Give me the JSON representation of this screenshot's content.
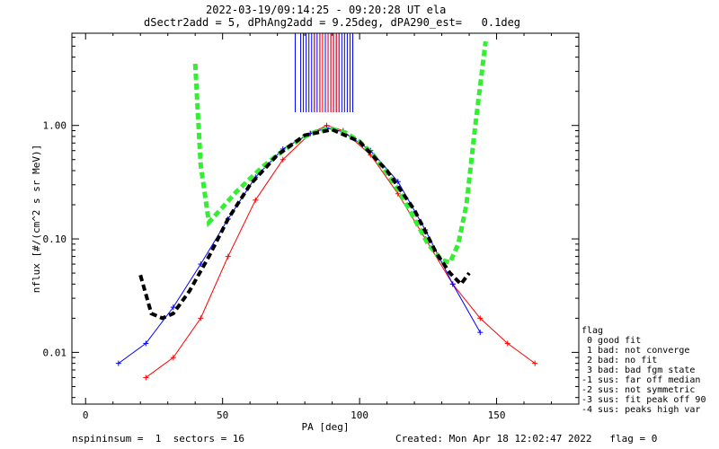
{
  "header": {
    "title_line1": "2022-03-19/09:14:25 - 09:20:28 UT ela",
    "title_line2": "dSectr2add = 5, dPhAng2add = 9.25deg, dPA290_est=   0.1deg"
  },
  "footer": {
    "left": "nspininsum =  1  sectors = 16",
    "right": "Created: Mon Apr 18 12:02:47 2022   flag = 0"
  },
  "legend": {
    "title": "flag",
    "items": [
      " 0 good fit",
      " 1 bad: not converge",
      " 2 bad: no fit",
      " 3 bad: bad fgm state",
      "-1 sus: far off median",
      "-2 sus: not symmetric",
      "-3 sus: fit peak off 90",
      "-4 sus: peaks high var"
    ]
  },
  "colors": {
    "series_red": "#ff0000",
    "series_blue": "#0000ff",
    "fit_green": "#33ee33",
    "fit_black": "#000000",
    "axes": "#000000"
  },
  "chart_data": {
    "type": "line",
    "xlabel": "PA [deg]",
    "ylabel": "nflux [#/(cm^2 s sr MeV)]",
    "xlim": [
      -5,
      180
    ],
    "ylim": [
      0.0035,
      6.5
    ],
    "yscale": "log",
    "x_ticks": [
      0,
      50,
      100,
      150
    ],
    "y_ticks": [
      {
        "value": 0.01,
        "label": "0.01"
      },
      {
        "value": 0.1,
        "label": "0.10"
      },
      {
        "value": 1.0,
        "label": "1.00"
      }
    ],
    "series": [
      {
        "name": "",
        "color": "red",
        "x": [
          22,
          32,
          42,
          52,
          62,
          72,
          82,
          88,
          94,
          104,
          114,
          124,
          134,
          144,
          154,
          164
        ],
        "y": [
          0.006,
          0.009,
          0.02,
          0.07,
          0.22,
          0.5,
          0.85,
          1.0,
          0.9,
          0.55,
          0.25,
          0.1,
          0.04,
          0.02,
          0.012,
          0.008
        ]
      },
      {
        "name": "",
        "color": "blue",
        "x": [
          12,
          22,
          32,
          42,
          52,
          62,
          72,
          82,
          88,
          94,
          104,
          114,
          124,
          134,
          144
        ],
        "y": [
          0.008,
          0.012,
          0.025,
          0.06,
          0.15,
          0.35,
          0.62,
          0.85,
          0.95,
          0.88,
          0.6,
          0.32,
          0.12,
          0.04,
          0.015
        ]
      },
      {
        "name": "",
        "color": "green",
        "style": "dashed-fit",
        "x": [
          40,
          42,
          45,
          50,
          55,
          60,
          65,
          70,
          75,
          80,
          85,
          90,
          95,
          100,
          105,
          110,
          115,
          120,
          125,
          130,
          133,
          136,
          139,
          142,
          146
        ],
        "y": [
          3.5,
          0.45,
          0.14,
          0.19,
          0.26,
          0.34,
          0.44,
          0.55,
          0.67,
          0.8,
          0.9,
          0.93,
          0.86,
          0.72,
          0.55,
          0.38,
          0.25,
          0.15,
          0.09,
          0.065,
          0.062,
          0.09,
          0.2,
          0.9,
          5.5
        ]
      },
      {
        "name": "",
        "color": "black",
        "style": "dashed-fit",
        "x": [
          20,
          24,
          28,
          32,
          38,
          45,
          52,
          60,
          70,
          80,
          90,
          100,
          110,
          120,
          128,
          133,
          137,
          140
        ],
        "y": [
          0.048,
          0.022,
          0.02,
          0.022,
          0.035,
          0.07,
          0.15,
          0.3,
          0.55,
          0.82,
          0.92,
          0.72,
          0.4,
          0.18,
          0.075,
          0.05,
          0.04,
          0.05
        ]
      }
    ],
    "vertical_lines": {
      "red": [
        83.5,
        85.5,
        86.5,
        88.5,
        89.5,
        90.5,
        91.5,
        92.5
      ],
      "blue": [
        76.5,
        78.5,
        79.5,
        80.5,
        81.5,
        82.5,
        83.5,
        84.5,
        85.5,
        86.5,
        87.5,
        88.5,
        89.5,
        90.5,
        91.5,
        92.5,
        93.5,
        94.5,
        95.5,
        96.5,
        97.5
      ]
    }
  }
}
